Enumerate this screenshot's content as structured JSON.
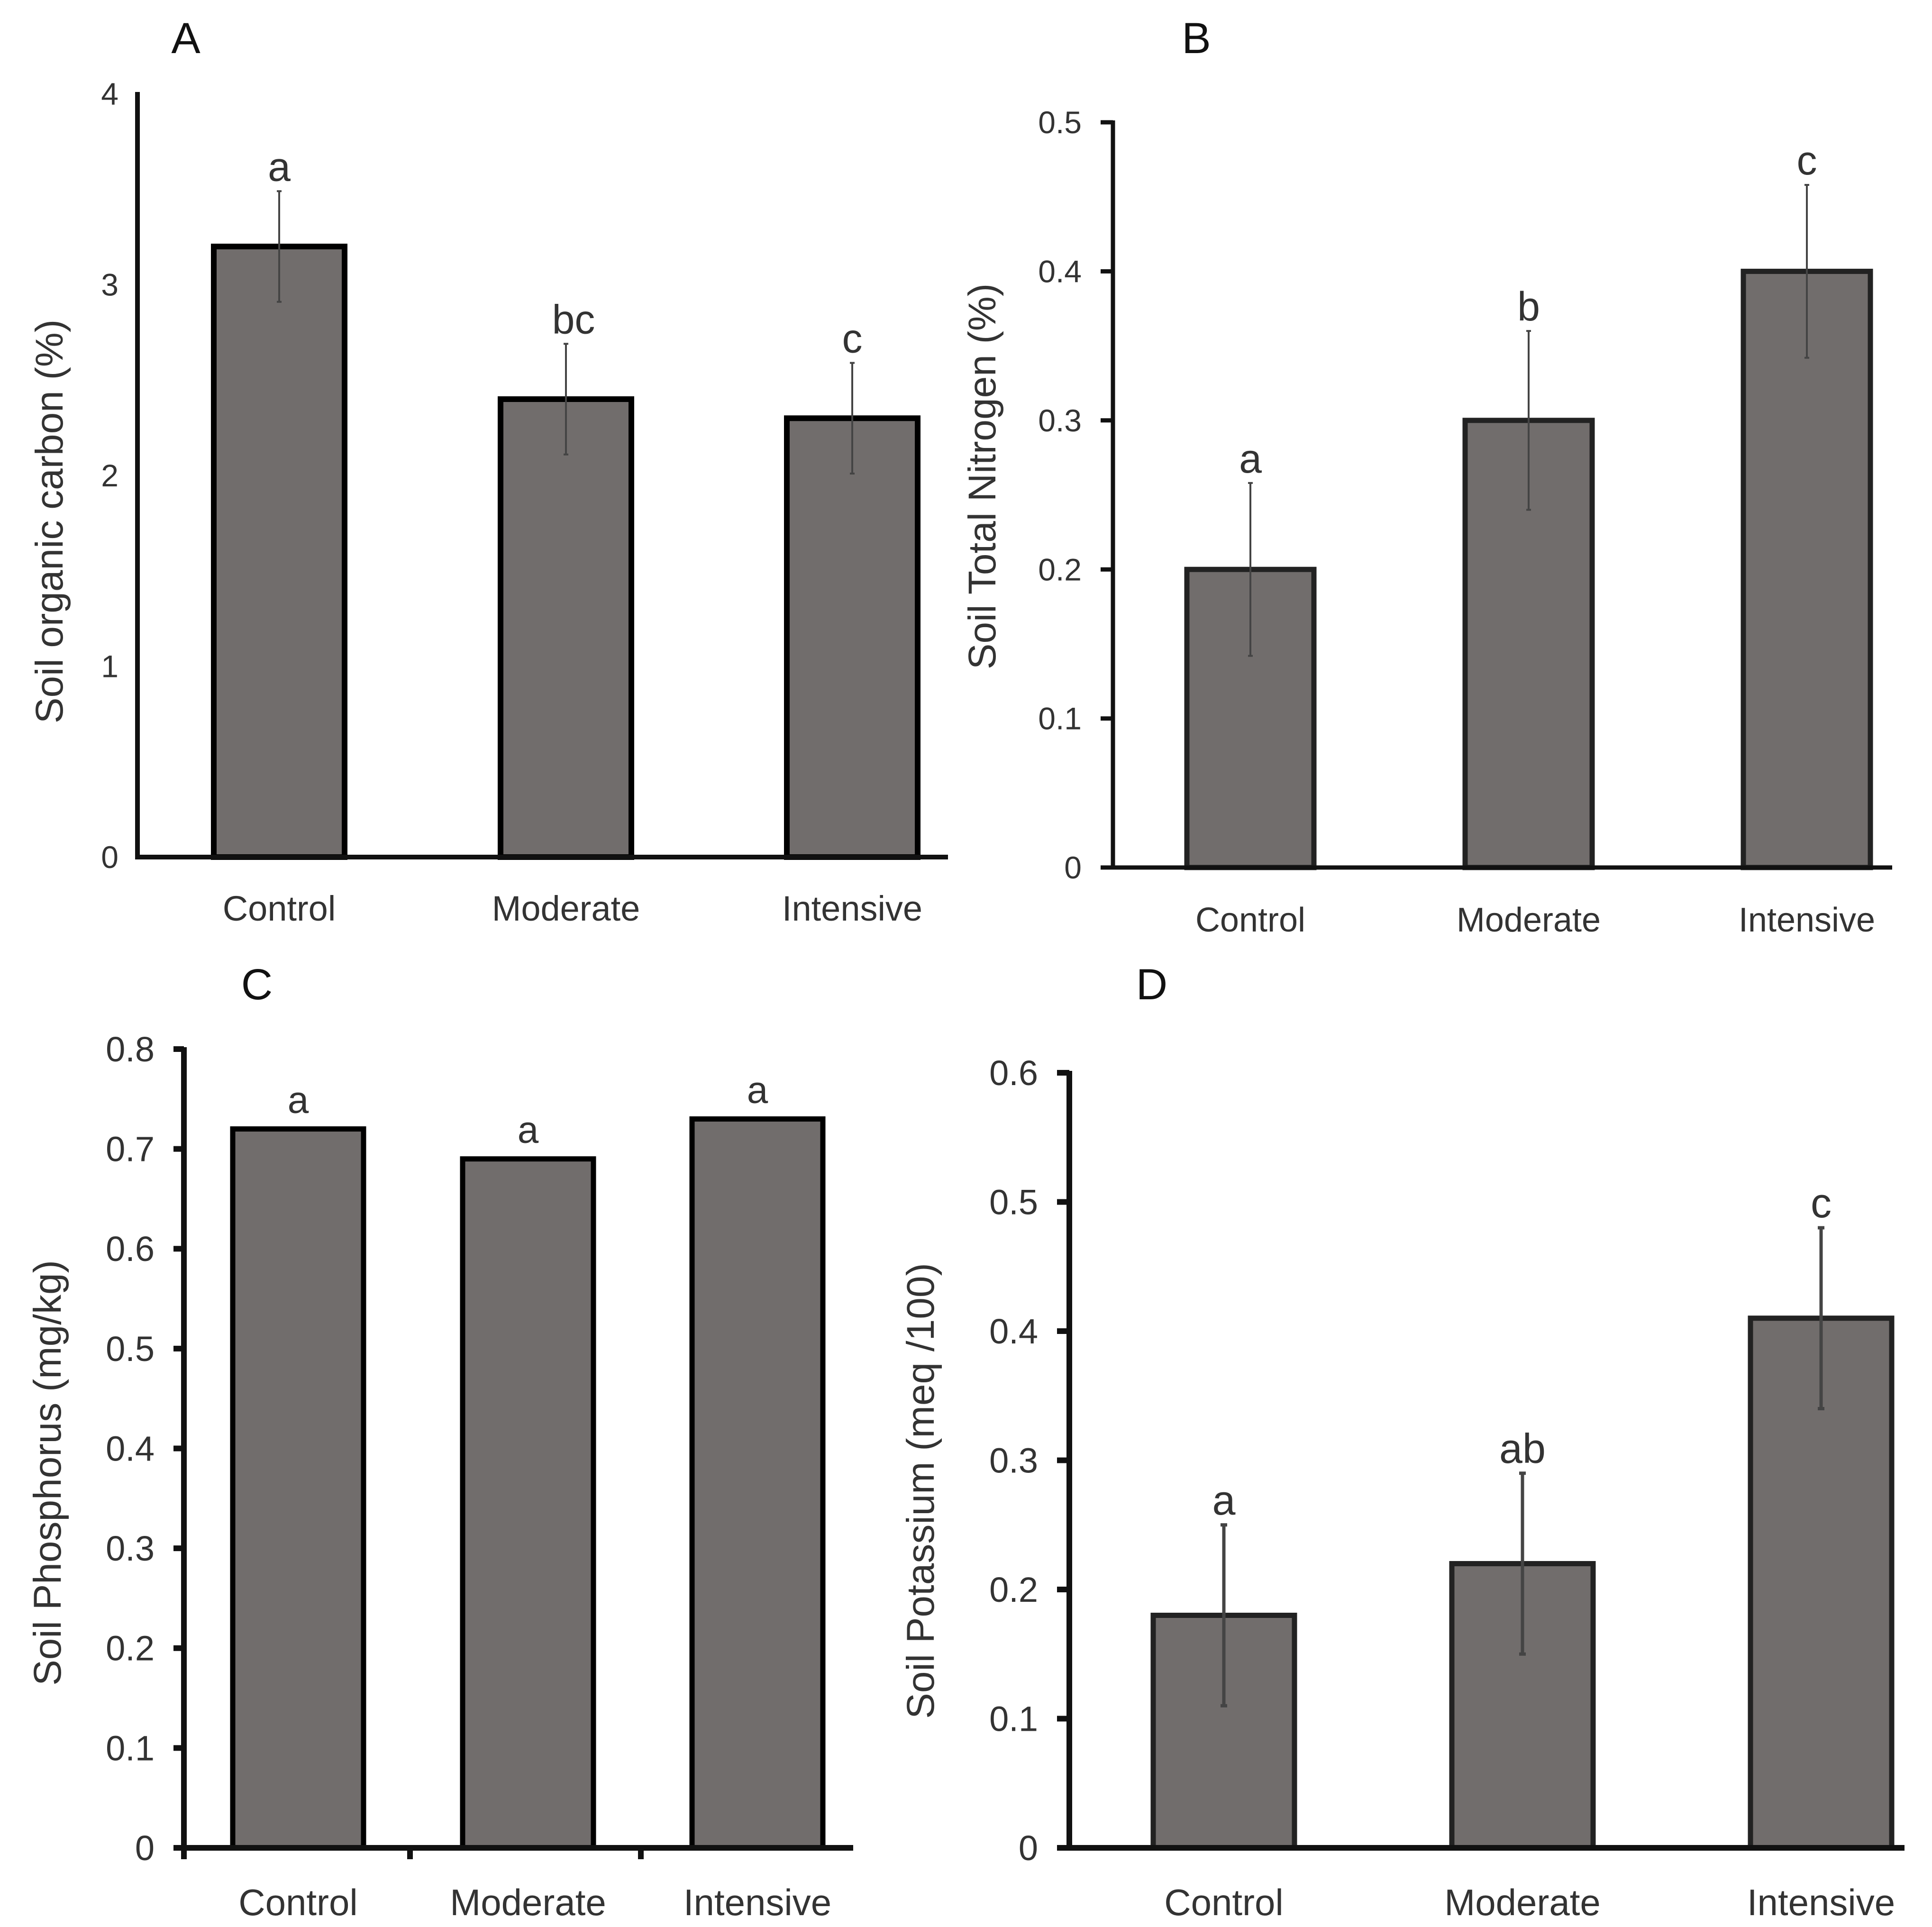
{
  "colors": {
    "bar_fill": "#716d6c",
    "bar_stroke": "#111111",
    "axis": "#111111",
    "text": "#333333",
    "background": "#ffffff"
  },
  "chart_data": [
    {
      "type": "bar",
      "panel_label": "A",
      "title": "",
      "xlabel": "",
      "ylabel": "Soil organic carbon (%)",
      "ylim": [
        0,
        4
      ],
      "yticks": [
        0,
        1,
        2,
        3,
        4
      ],
      "ytick_labels": [
        "0",
        "1",
        "2",
        "3",
        "4"
      ],
      "grid": false,
      "categories": [
        "Control",
        "Moderate",
        "Intensive"
      ],
      "values": [
        3.2,
        2.4,
        2.3
      ],
      "errors": [
        0.29,
        0.29,
        0.29
      ],
      "letters": [
        "a",
        "bc",
        "c"
      ]
    },
    {
      "type": "bar",
      "panel_label": "B",
      "title": "",
      "xlabel": "",
      "ylabel": "Soil Total Nitrogen (%)",
      "ylim": [
        0,
        0.5
      ],
      "yticks": [
        0,
        0.1,
        0.2,
        0.3,
        0.4,
        0.5
      ],
      "ytick_labels": [
        "0",
        "0.1",
        "0.2",
        "0.3",
        "0.4",
        "0.5"
      ],
      "grid": false,
      "categories": [
        "Control",
        "Moderate",
        "Intensive"
      ],
      "values": [
        0.2,
        0.3,
        0.4
      ],
      "errors": [
        0.058,
        0.06,
        0.058
      ],
      "letters": [
        "a",
        "b",
        "c"
      ]
    },
    {
      "type": "bar",
      "panel_label": "C",
      "title": "",
      "xlabel": "",
      "ylabel": "Soil  Phosphorus (mg/kg)",
      "ylim": [
        0,
        0.8
      ],
      "yticks": [
        0,
        0.1,
        0.2,
        0.3,
        0.4,
        0.5,
        0.6,
        0.7,
        0.8
      ],
      "ytick_labels": [
        "0",
        "0.1",
        "0.2",
        "0.3",
        "0.4",
        "0.5",
        "0.6",
        "0.7",
        "0.8"
      ],
      "grid": false,
      "categories": [
        "Control",
        "Moderate",
        "Intensive"
      ],
      "values": [
        0.72,
        0.69,
        0.73
      ],
      "errors": [
        0,
        0,
        0
      ],
      "letters": [
        "a",
        "a",
        "a"
      ]
    },
    {
      "type": "bar",
      "panel_label": "D",
      "title": "",
      "xlabel": "",
      "ylabel": "Soil Potassium (meq /100)",
      "ylim": [
        0,
        0.6
      ],
      "yticks": [
        0,
        0.1,
        0.2,
        0.3,
        0.4,
        0.5,
        0.6
      ],
      "ytick_labels": [
        "0",
        "0.1",
        "0.2",
        "0.3",
        "0.4",
        "0.5",
        "0.6"
      ],
      "grid": false,
      "categories": [
        "Control",
        "Moderate",
        "Intensive"
      ],
      "values": [
        0.18,
        0.22,
        0.41
      ],
      "errors": [
        0.07,
        0.07,
        0.07
      ],
      "letters": [
        "a",
        "ab",
        "c"
      ]
    }
  ]
}
